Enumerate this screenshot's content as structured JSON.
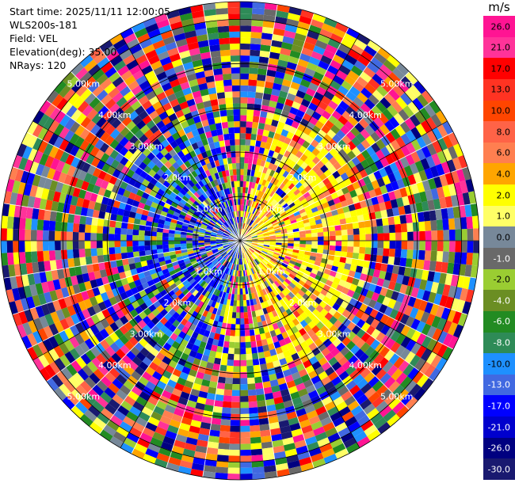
{
  "info": {
    "start_time": "Start time: 2025/11/11 12:00:05",
    "instrument": "WLS200s-181",
    "field": "Field: VEL",
    "elevation": "Elevation(deg): 35.00",
    "nrays": "NRays: 120"
  },
  "colorbar": {
    "title": "m/s",
    "levels": [
      "26.0",
      "21.0",
      "17.0",
      "13.0",
      "10.0",
      "8.0",
      "6.0",
      "4.0",
      "2.0",
      "1.0",
      "0.0",
      "-1.0",
      "-2.0",
      "-4.0",
      "-6.0",
      "-8.0",
      "-10.0",
      "-13.0",
      "-17.0",
      "-21.0",
      "-26.0",
      "-30.0"
    ],
    "colors": [
      "#ff1493",
      "#ff3399",
      "#ff0000",
      "#ff3322",
      "#ff4500",
      "#ff6347",
      "#ff7f50",
      "#ffa500",
      "#ffff00",
      "#ffff66",
      "#778899",
      "#696969",
      "#9acd32",
      "#6b8e23",
      "#228b22",
      "#2e8b57",
      "#1e90ff",
      "#4169e1",
      "#0000ff",
      "#0000cd",
      "#000080",
      "#191970"
    ]
  },
  "chart_data": {
    "type": "heatmap",
    "projection": "polar-ppi",
    "field": "VEL",
    "unit": "m/s",
    "nrays": 120,
    "range_rings": [
      {
        "label": "1.0km",
        "value": 1.0
      },
      {
        "label": "2.0km",
        "value": 2.0
      },
      {
        "label": "3.00km",
        "value": 3.0
      },
      {
        "label": "4.00km",
        "value": 4.0
      },
      {
        "label": "5.00km",
        "value": 5.0
      }
    ],
    "max_range_km": 5.4,
    "value_range": [
      -30,
      30
    ]
  }
}
